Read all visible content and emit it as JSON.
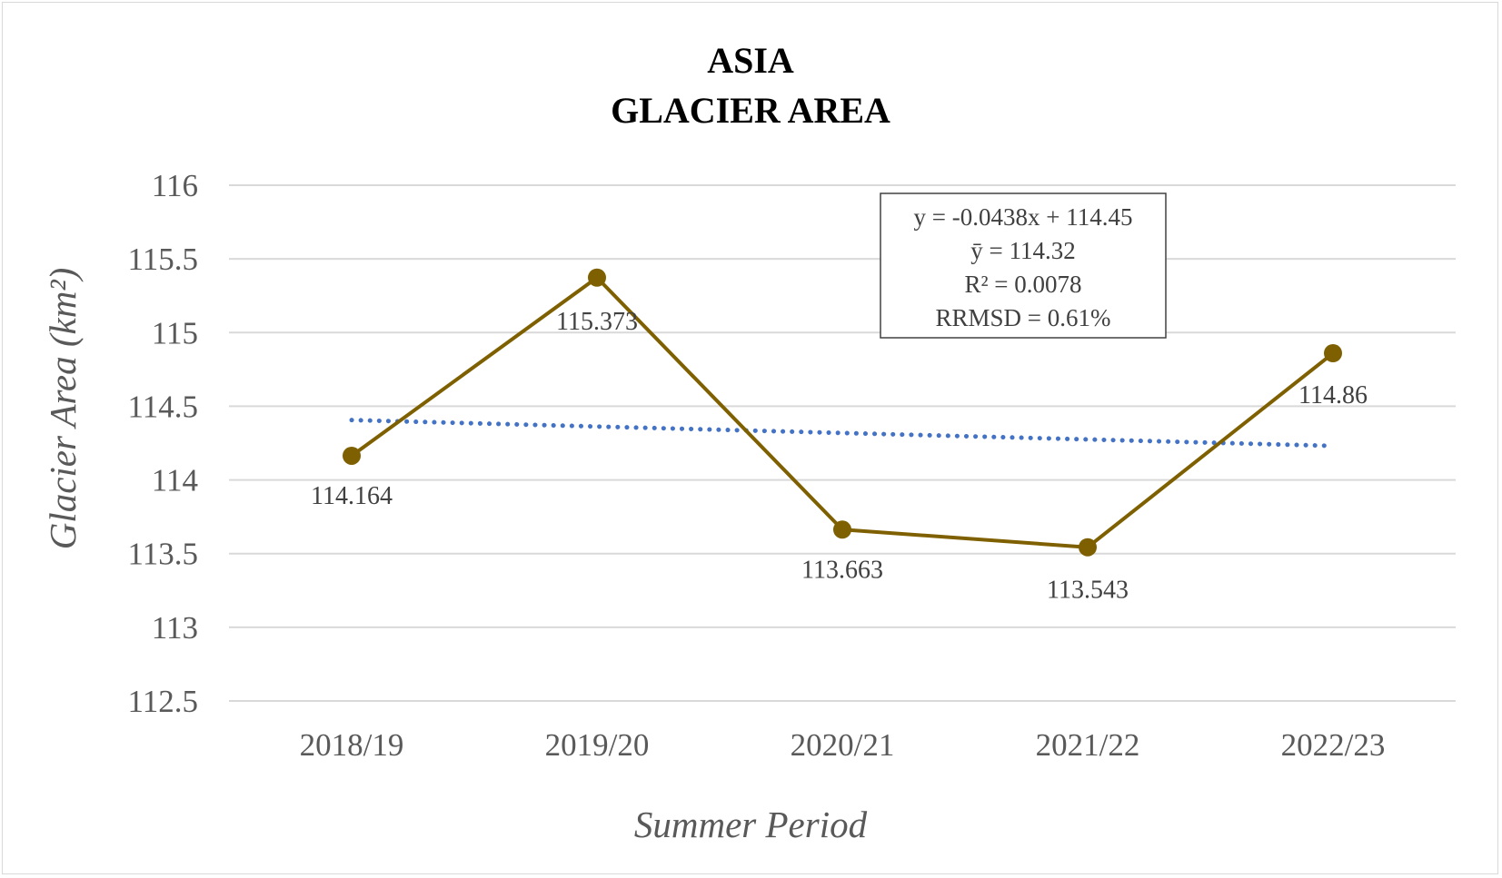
{
  "chart_data": {
    "type": "line",
    "title_lines": [
      "ASIA",
      "GLACIER AREA"
    ],
    "xlabel": "Summer Period",
    "ylabel": "Glacier Area (km²)",
    "categories": [
      "2018/19",
      "2019/20",
      "2020/21",
      "2021/22",
      "2022/23"
    ],
    "series": [
      {
        "values": [
          114.164,
          115.373,
          113.663,
          113.543,
          114.86
        ],
        "labels": [
          "114.164",
          "115.373",
          "113.663",
          "113.543",
          "114.86"
        ],
        "color": "#7f6000"
      }
    ],
    "trendline": {
      "style": "dotted",
      "color": "#4472c4",
      "slope": -0.0438,
      "intercept": 114.45
    },
    "stats_box": {
      "lines": [
        "y = -0.0438x + 114.45",
        "ȳ = 114.32",
        "R² = 0.0078",
        "RRMSD = 0.61%"
      ]
    },
    "ylim": [
      112.5,
      116
    ],
    "yticks": [
      "112.5",
      "113",
      "113.5",
      "114",
      "114.5",
      "115",
      "115.5",
      "116"
    ],
    "grid": true,
    "legend": "none"
  }
}
